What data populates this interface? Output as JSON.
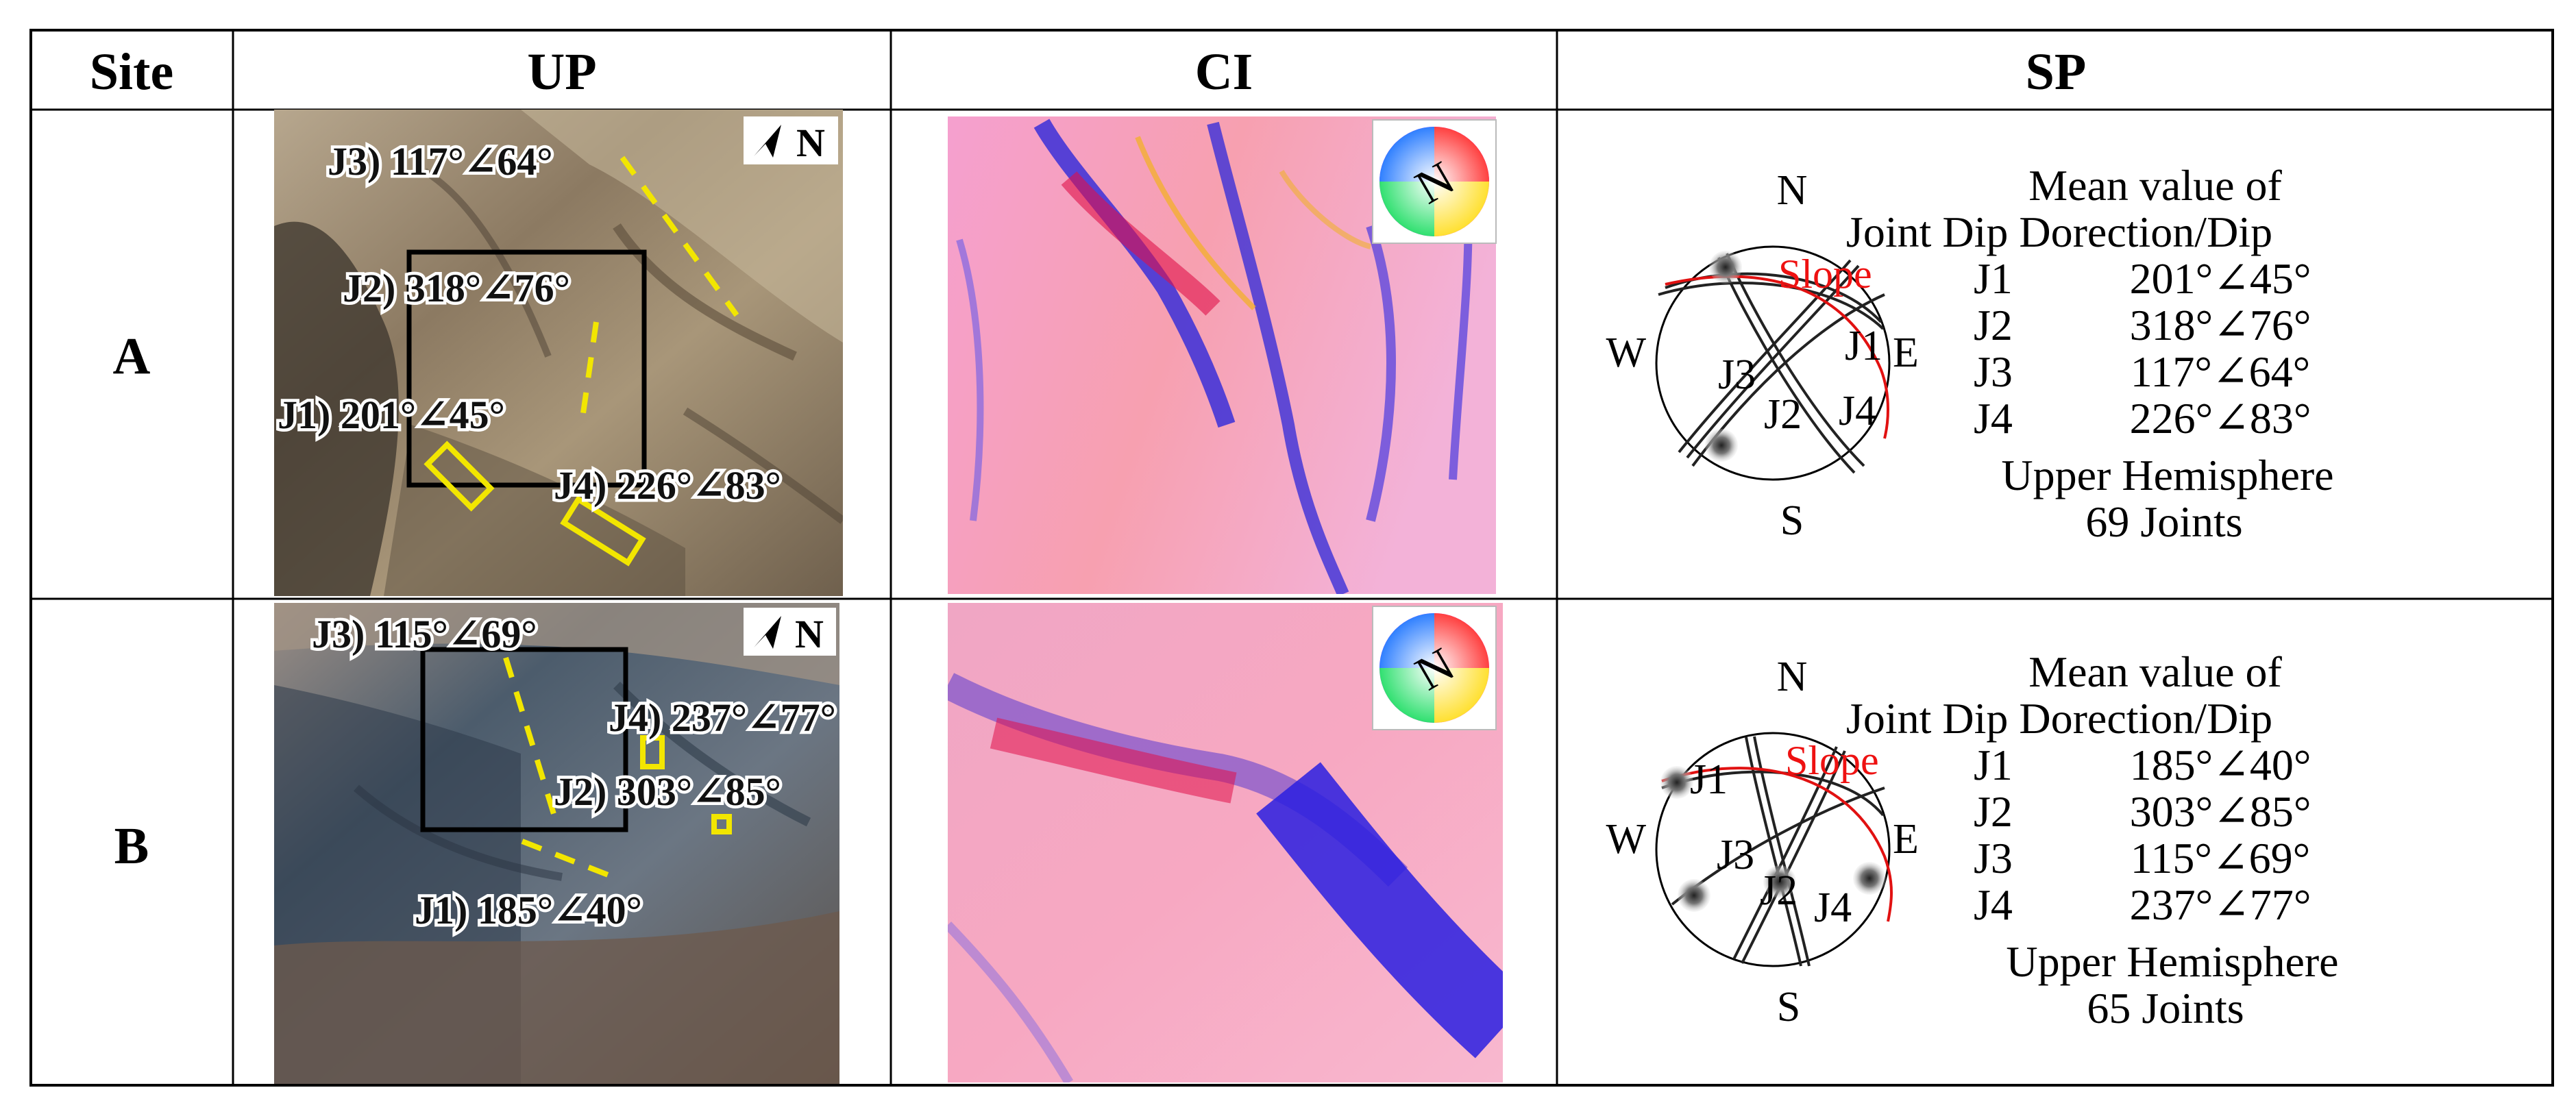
{
  "table": {
    "headers": {
      "site": "Site",
      "up": "UP",
      "ci": "CI",
      "sp": "SP"
    },
    "rows": [
      {
        "site": "A",
        "up": {
          "north": "N",
          "labels": {
            "j1": "J1) 201°∠45°",
            "j2": "J2) 318°∠76°",
            "j3": "J3) 117°∠64°",
            "j4": "J4) 226°∠83°"
          }
        },
        "ci": {
          "compass_label": "N"
        },
        "sp": {
          "compass": {
            "n": "N",
            "s": "S",
            "e": "E",
            "w": "W"
          },
          "plot_labels": {
            "slope": "Slope",
            "j1": "J1",
            "j2": "J2",
            "j3": "J3",
            "j4": "J4"
          },
          "title": "Mean value of",
          "header": "Joint  Dip Dorection/Dip",
          "joints": [
            {
              "name": "J1",
              "value": "201°∠45°"
            },
            {
              "name": "J2",
              "value": "318°∠76°"
            },
            {
              "name": "J3",
              "value": "117°∠64°"
            },
            {
              "name": "J4",
              "value": "226°∠83°"
            }
          ],
          "hemisphere": "Upper Hemisphere",
          "count": "69 Joints"
        }
      },
      {
        "site": "B",
        "up": {
          "north": "N",
          "labels": {
            "j1": "J1) 185°∠40°",
            "j2": "J2) 303°∠85°",
            "j3": "J3) 115°∠69°",
            "j4": "J4) 237°∠77°"
          }
        },
        "ci": {
          "compass_label": "N"
        },
        "sp": {
          "compass": {
            "n": "N",
            "s": "S",
            "e": "E",
            "w": "W"
          },
          "plot_labels": {
            "slope": "Slope",
            "j1": "J1",
            "j2": "J2",
            "j3": "J3",
            "j4": "J4"
          },
          "title": "Mean value of",
          "header": "Joint  Dip Dorection/Dip",
          "joints": [
            {
              "name": "J1",
              "value": "185°∠40°"
            },
            {
              "name": "J2",
              "value": "303°∠85°"
            },
            {
              "name": "J3",
              "value": "115°∠69°"
            },
            {
              "name": "J4",
              "value": "237°∠77°"
            }
          ],
          "hemisphere": "Upper Hemisphere",
          "count": "65 Joints"
        }
      }
    ]
  },
  "colors": {
    "annotation_line": "#f2e600",
    "slope_line": "#e11111",
    "ci_base": "#f7a3c6",
    "ci_shadow": "#3a2fd8"
  },
  "icons": [
    "north-arrow-icon",
    "color-wheel-compass-icon"
  ]
}
